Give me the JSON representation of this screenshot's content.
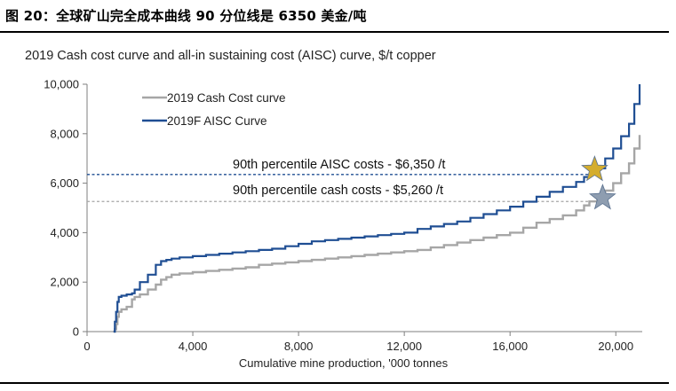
{
  "figure": {
    "title": "图 20：全球矿山完全成本曲线 90 分位线是 6350 美金/吨"
  },
  "chart_data": {
    "type": "line",
    "title": "2019 Cash cost curve and all-in sustaining cost (AISC) curve, $/t copper",
    "xlabel": "Cumulative mine production, '000 tonnes",
    "ylabel": "",
    "xlim": [
      0,
      21000
    ],
    "ylim": [
      0,
      10000
    ],
    "xticks": [
      0,
      4000,
      8000,
      12000,
      16000,
      20000
    ],
    "xtick_labels": [
      "0",
      "4,000",
      "8,000",
      "12,000",
      "16,000",
      "20,000"
    ],
    "yticks": [
      0,
      2000,
      4000,
      6000,
      8000,
      10000
    ],
    "ytick_labels": [
      "0",
      "2,000",
      "4,000",
      "6,000",
      "8,000",
      "10,000"
    ],
    "grid": false,
    "legend_position": "top-left",
    "series": [
      {
        "name": "2019 Cash Cost curve",
        "color": "#a6a6a6",
        "x": [
          1000,
          1050,
          1100,
          1150,
          1200,
          1300,
          1500,
          1700,
          1800,
          2000,
          2300,
          2600,
          2800,
          3000,
          3200,
          3500,
          4000,
          4500,
          5000,
          5500,
          6000,
          6500,
          7000,
          7500,
          8000,
          8500,
          9000,
          9500,
          10000,
          10500,
          11000,
          11500,
          12000,
          12500,
          13000,
          13500,
          14000,
          14500,
          15000,
          15500,
          16000,
          16500,
          17000,
          17500,
          18000,
          18500,
          18800,
          19000,
          19300,
          19600,
          19900,
          20200,
          20500,
          20700,
          20900
        ],
        "y": [
          0,
          100,
          300,
          600,
          800,
          900,
          1000,
          1300,
          1400,
          1500,
          1700,
          1900,
          2100,
          2200,
          2300,
          2350,
          2400,
          2450,
          2500,
          2550,
          2600,
          2700,
          2750,
          2800,
          2850,
          2900,
          2950,
          3000,
          3050,
          3100,
          3150,
          3200,
          3250,
          3300,
          3400,
          3500,
          3600,
          3700,
          3800,
          3900,
          4000,
          4200,
          4400,
          4550,
          4700,
          4900,
          5100,
          5260,
          5400,
          5700,
          6000,
          6400,
          6800,
          7400,
          7950
        ]
      },
      {
        "name": "2019F AISC Curve",
        "color": "#1f4e93",
        "x": [
          1000,
          1050,
          1100,
          1150,
          1200,
          1300,
          1500,
          1700,
          1800,
          2000,
          2300,
          2600,
          2800,
          3000,
          3200,
          3500,
          4000,
          4500,
          5000,
          5500,
          6000,
          6500,
          7000,
          7500,
          8000,
          8500,
          9000,
          9500,
          10000,
          10500,
          11000,
          11500,
          12000,
          12500,
          13000,
          13500,
          14000,
          14500,
          15000,
          15500,
          16000,
          16500,
          17000,
          17500,
          18000,
          18500,
          18800,
          19000,
          19300,
          19600,
          19900,
          20200,
          20500,
          20700,
          20900
        ],
        "y": [
          0,
          400,
          800,
          1200,
          1400,
          1450,
          1500,
          1550,
          1700,
          2000,
          2300,
          2700,
          2850,
          2900,
          2950,
          3000,
          3050,
          3100,
          3150,
          3200,
          3250,
          3300,
          3350,
          3450,
          3550,
          3650,
          3700,
          3750,
          3800,
          3850,
          3900,
          3950,
          4000,
          4150,
          4250,
          4350,
          4450,
          4600,
          4750,
          4900,
          5050,
          5250,
          5450,
          5650,
          5850,
          6050,
          6250,
          6350,
          6600,
          7000,
          7400,
          7900,
          8400,
          9200,
          10000
        ]
      }
    ],
    "reference_lines": [
      {
        "label": "90th percentile AISC costs - $6,350 /t",
        "y": 6350,
        "x_end": 19200,
        "color": "#1f4e93",
        "style": "dashed"
      },
      {
        "label": "90th percentile cash costs - $5,260 /t",
        "y": 5260,
        "x_end": 19500,
        "color": "#a6a6a6",
        "style": "dashed"
      }
    ],
    "markers": [
      {
        "shape": "star",
        "x": 19200,
        "y": 6550,
        "color": "#d4ad2e"
      },
      {
        "shape": "star",
        "x": 19500,
        "y": 5400,
        "color": "#8e9db0"
      }
    ]
  }
}
